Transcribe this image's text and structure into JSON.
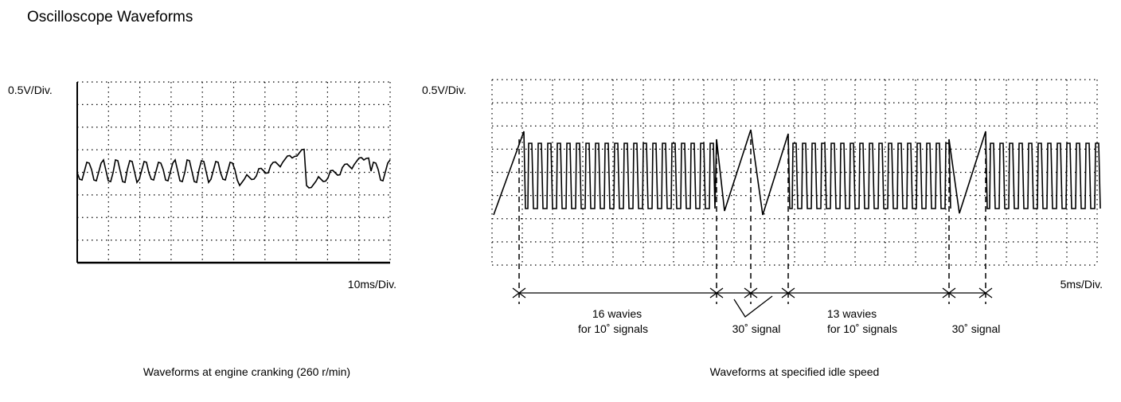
{
  "title": "Oscilloscope Waveforms",
  "panels": [
    {
      "volt_scale": "0.5V/Div.",
      "time_scale": "10ms/Div.",
      "caption": "Waveforms at engine cranking (260 r/min)"
    },
    {
      "volt_scale": "0.5V/Div.",
      "time_scale": "5ms/Div.",
      "caption": "Waveforms at specified idle speed",
      "annotations": [
        {
          "lines": [
            "16 wavies",
            "for 10˚ signals"
          ]
        },
        {
          "lines": [
            "30˚ signal"
          ]
        },
        {
          "lines": [
            "13 wavies",
            "for 10˚ signals"
          ]
        },
        {
          "lines": [
            "30˚ signal"
          ]
        }
      ]
    }
  ]
}
